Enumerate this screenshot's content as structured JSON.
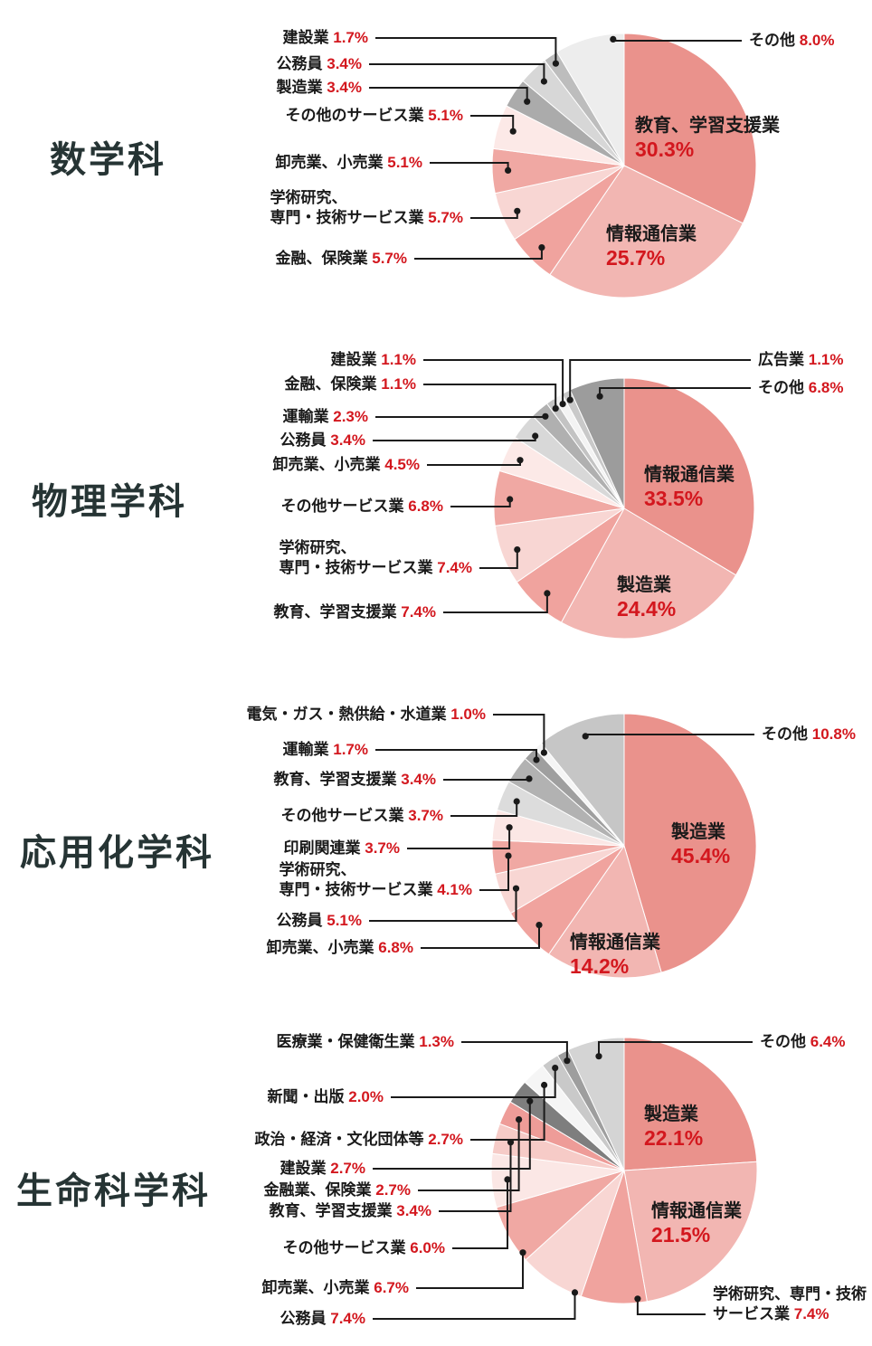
{
  "page": {
    "background": "#ffffff",
    "text_color": "#1a1a1a",
    "percent_color": "#d3171e",
    "title_color": "#263434",
    "unit": "%"
  },
  "chart_data": [
    {
      "type": "pie",
      "title": "数学科",
      "start_angle_deg": 0,
      "direction": "clockwise",
      "values_unit": "%",
      "slices": [
        {
          "label": "教育、学習支援業",
          "value": 30.3,
          "color": "#ea928c"
        },
        {
          "label": "情報通信業",
          "value": 25.7,
          "color": "#f2b6b2"
        },
        {
          "label": "金融、保険業",
          "value": 5.7,
          "color": "#f0a39e"
        },
        {
          "label": [
            "学術研究、",
            "専門・技術サービス業"
          ],
          "value": 5.7,
          "color": "#f8d6d3"
        },
        {
          "label": "卸売業、小売業",
          "value": 5.1,
          "color": "#f0a8a3"
        },
        {
          "label": "その他のサービス業",
          "value": 5.1,
          "color": "#fce9e7"
        },
        {
          "label": "製造業",
          "value": 3.4,
          "color": "#ababab"
        },
        {
          "label": "公務員",
          "value": 3.4,
          "color": "#d7d7d7"
        },
        {
          "label": "建設業",
          "value": 1.7,
          "color": "#bdbdbd"
        },
        {
          "label": "その他",
          "value": 8.0,
          "color": "#ededed"
        }
      ]
    },
    {
      "type": "pie",
      "title": "物理学科",
      "start_angle_deg": 0,
      "direction": "clockwise",
      "values_unit": "%",
      "slices": [
        {
          "label": "情報通信業",
          "value": 33.5,
          "color": "#ea928c"
        },
        {
          "label": "製造業",
          "value": 24.4,
          "color": "#f2b6b2"
        },
        {
          "label": "教育、学習支援業",
          "value": 7.4,
          "color": "#f0a39e"
        },
        {
          "label": [
            "学術研究、",
            "専門・技術サービス業"
          ],
          "value": 7.4,
          "color": "#f8d6d3"
        },
        {
          "label": "その他サービス業",
          "value": 6.8,
          "color": "#f0a8a3"
        },
        {
          "label": "卸売業、小売業",
          "value": 4.5,
          "color": "#fce9e7"
        },
        {
          "label": "公務員",
          "value": 3.4,
          "color": "#d8d8d8"
        },
        {
          "label": "運輸業",
          "value": 2.3,
          "color": "#b0b0b0"
        },
        {
          "label": "金融、保険業",
          "value": 1.1,
          "color": "#c3c3c3"
        },
        {
          "label": "建設業",
          "value": 1.1,
          "color": "#f3f3f3"
        },
        {
          "label": "広告業",
          "value": 1.1,
          "color": "#c9c9c9"
        },
        {
          "label": "その他",
          "value": 6.8,
          "color": "#9c9c9c"
        }
      ]
    },
    {
      "type": "pie",
      "title": "応用化学科",
      "start_angle_deg": 0,
      "direction": "clockwise",
      "values_unit": "%",
      "slices": [
        {
          "label": "製造業",
          "value": 45.4,
          "color": "#ea928c"
        },
        {
          "label": "情報通信業",
          "value": 14.2,
          "color": "#f2b6b2"
        },
        {
          "label": "卸売業、小売業",
          "value": 6.8,
          "color": "#f0a39e"
        },
        {
          "label": "公務員",
          "value": 5.1,
          "color": "#f8d6d3"
        },
        {
          "label": [
            "学術研究、",
            "専門・技術サービス業"
          ],
          "value": 4.1,
          "color": "#f0a8a3"
        },
        {
          "label": "印刷関連業",
          "value": 3.7,
          "color": "#fbe7e5"
        },
        {
          "label": "その他サービス業",
          "value": 3.7,
          "color": "#dcdcdc"
        },
        {
          "label": "教育、学習支援業",
          "value": 3.4,
          "color": "#b2b2b2"
        },
        {
          "label": "運輸業",
          "value": 1.7,
          "color": "#9f9f9f"
        },
        {
          "label": "電気・ガス・熱供給・水道業",
          "value": 1.0,
          "color": "#f5f5f5"
        },
        {
          "label": "その他",
          "value": 10.8,
          "color": "#c6c6c6"
        }
      ]
    },
    {
      "type": "pie",
      "title": "生命科学科",
      "start_angle_deg": 0,
      "direction": "clockwise",
      "values_unit": "%",
      "slices": [
        {
          "label": "製造業",
          "value": 22.1,
          "color": "#ea928c"
        },
        {
          "label": "情報通信業",
          "value": 21.5,
          "color": "#f2b6b2"
        },
        {
          "label": [
            "学術研究、専門・技術",
            "サービス業"
          ],
          "value": 7.4,
          "color": "#f0a39e"
        },
        {
          "label": "公務員",
          "value": 7.4,
          "color": "#f8d6d3"
        },
        {
          "label": "卸売業、小売業",
          "value": 6.7,
          "color": "#f0a8a3"
        },
        {
          "label": "その他サービス業",
          "value": 6.0,
          "color": "#fbe7e5"
        },
        {
          "label": "教育、学習支援業",
          "value": 3.4,
          "color": "#f6cbc7"
        },
        {
          "label": "金融業、保険業",
          "value": 2.7,
          "color": "#ee9c98"
        },
        {
          "label": "建設業",
          "value": 2.7,
          "color": "#7e7e7e"
        },
        {
          "label": "政治・経済・文化団体等",
          "value": 2.7,
          "color": "#f5f5f5"
        },
        {
          "label": "新聞・出版",
          "value": 2.0,
          "color": "#c9c9c9"
        },
        {
          "label": "医療業・保健衛生業",
          "value": 1.3,
          "color": "#9e9e9e"
        },
        {
          "label": "その他",
          "value": 6.4,
          "color": "#d4d4d4"
        }
      ]
    }
  ]
}
